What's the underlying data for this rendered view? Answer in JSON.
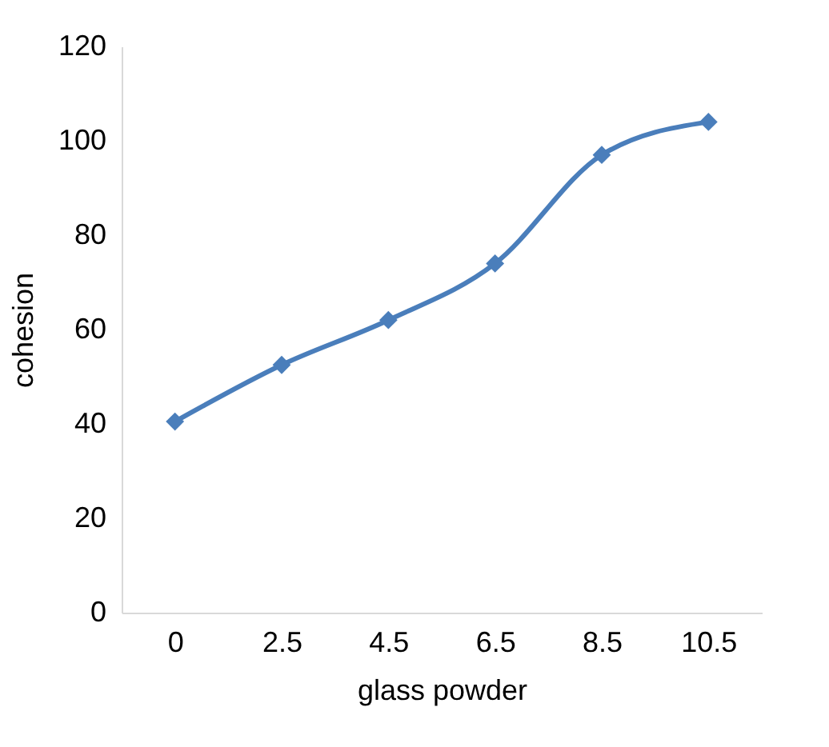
{
  "chart_data": {
    "type": "line",
    "xlabel": "glass powder",
    "ylabel": "cohesion",
    "categories": [
      "0",
      "2.5",
      "4.5",
      "6.5",
      "8.5",
      "10.5"
    ],
    "series": [
      {
        "color": "#4a7ebb",
        "values": [
          40.5,
          52.5,
          62,
          74,
          97,
          104
        ]
      }
    ],
    "ylim": [
      0,
      120
    ],
    "yticks": [
      0,
      20,
      40,
      60,
      80,
      100,
      120
    ],
    "grid": false,
    "marker": "diamond",
    "line_style": "solid"
  }
}
